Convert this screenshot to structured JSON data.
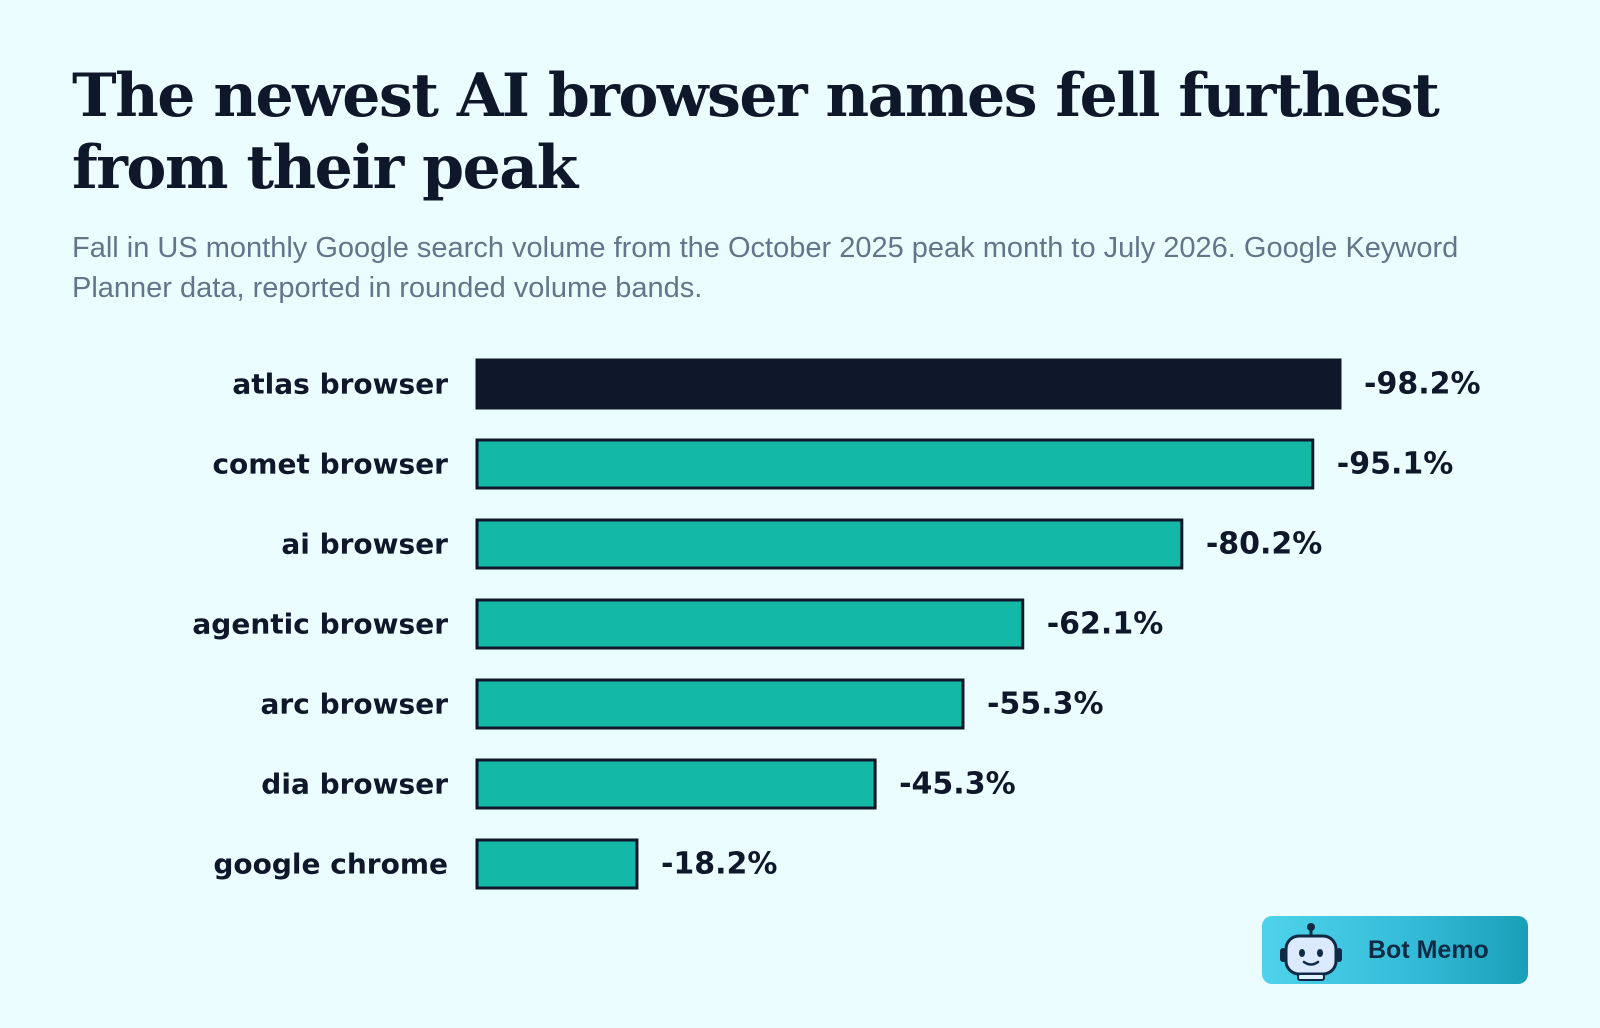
{
  "header": {
    "title": "The newest AI browser names fell furthest from their peak",
    "subtitle": "Fall in US monthly Google search volume from the October 2025 peak month to July 2026. Google Keyword Planner data, reported in rounded volume bands."
  },
  "chart_data": {
    "type": "bar",
    "orientation": "horizontal",
    "categories": [
      "atlas browser",
      "comet browser",
      "ai browser",
      "agentic browser",
      "arc browser",
      "dia browser",
      "google chrome"
    ],
    "values": [
      -98.2,
      -95.1,
      -80.2,
      -62.1,
      -55.3,
      -45.3,
      -18.2
    ],
    "value_labels": [
      "-98.2%",
      "-95.1%",
      "-80.2%",
      "-62.1%",
      "-55.3%",
      "-45.3%",
      "-18.2%"
    ],
    "title": "The newest AI browser names fell furthest from their peak",
    "xlabel": "",
    "ylabel": "",
    "grid": false,
    "legend": "none",
    "colors": {
      "highlight": "#0f172a",
      "bar": "#14b8a6",
      "outline": "#0f172a"
    }
  },
  "brand": {
    "name": "Bot Memo",
    "icon": "robot-icon",
    "gradient": [
      "#4fd3ec",
      "#1a9fb8"
    ]
  }
}
